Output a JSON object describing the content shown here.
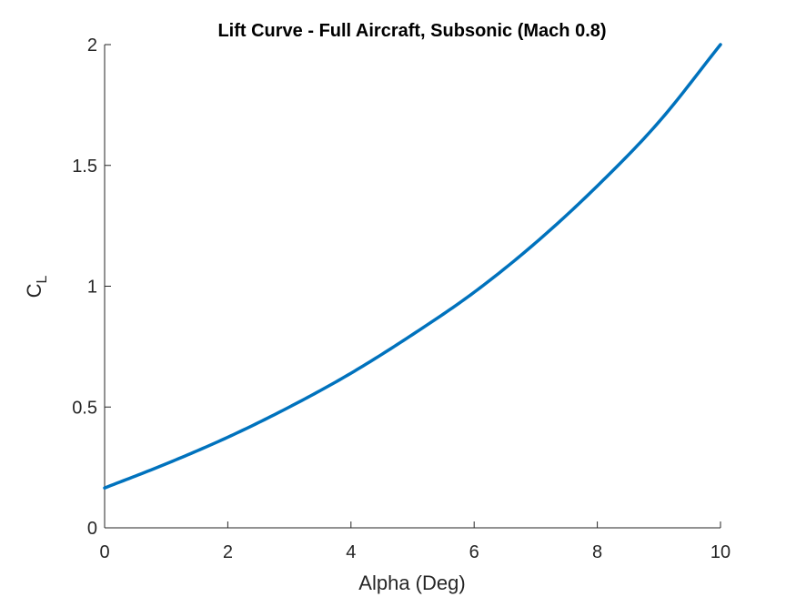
{
  "chart_data": {
    "type": "line",
    "title": "Lift Curve - Full Aircraft, Subsonic (Mach 0.8)",
    "xlabel": "Alpha (Deg)",
    "ylabel_main": "C",
    "ylabel_sub": "L",
    "xlim": [
      0,
      10
    ],
    "ylim": [
      0,
      2
    ],
    "xticks": [
      0,
      2,
      4,
      6,
      8,
      10
    ],
    "xtick_labels": [
      "0",
      "2",
      "4",
      "6",
      "8",
      "10"
    ],
    "yticks": [
      0,
      0.5,
      1,
      1.5,
      2
    ],
    "ytick_labels": [
      "0",
      "0.5",
      "1",
      "1.5",
      "2"
    ],
    "grid": false,
    "line_color": "#0072BD",
    "series": [
      {
        "x": [
          0,
          1,
          2,
          3,
          4,
          5,
          6,
          7,
          8,
          9,
          10
        ],
        "y": [
          0.165,
          0.265,
          0.375,
          0.5,
          0.64,
          0.8,
          0.975,
          1.18,
          1.415,
          1.68,
          2.0
        ]
      }
    ]
  }
}
